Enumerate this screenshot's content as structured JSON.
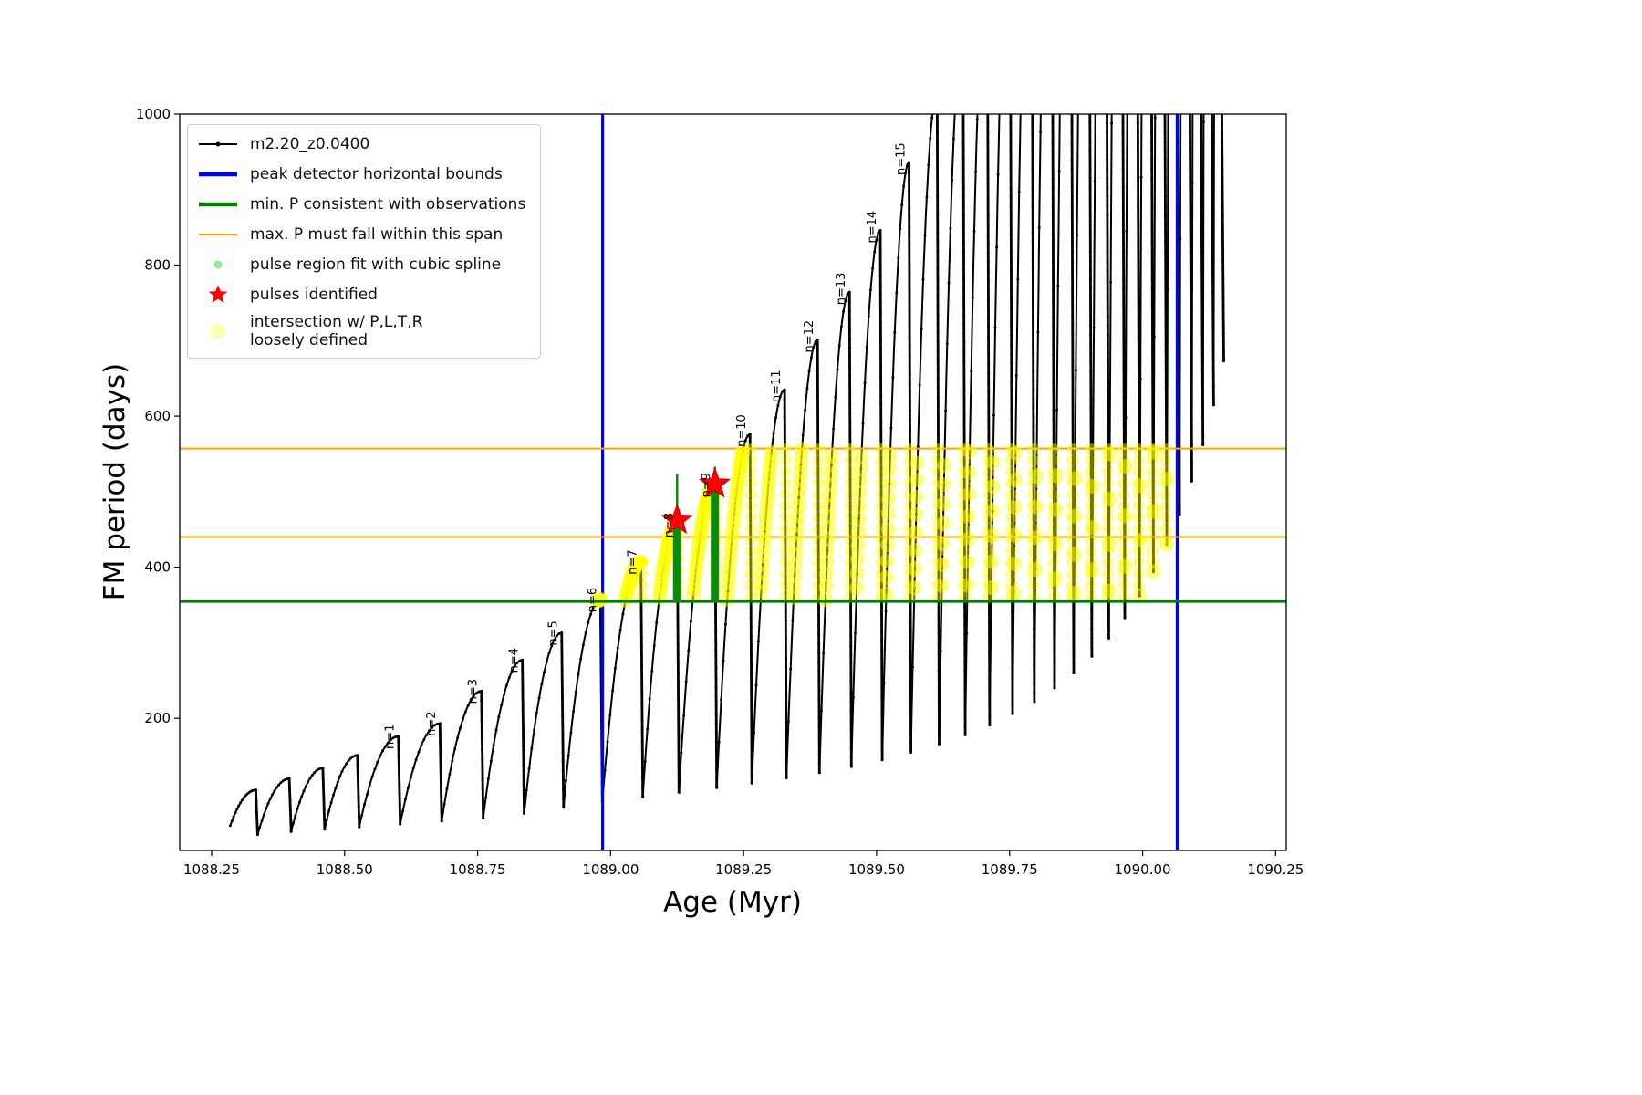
{
  "figure": {
    "background": "#ffffff"
  },
  "legend": {
    "items": [
      {
        "type": "line-dot",
        "color": "#000000",
        "label": "m2.20_z0.0400"
      },
      {
        "type": "thick-line",
        "color": "#0000ff",
        "label": "peak detector horizontal bounds"
      },
      {
        "type": "thick-line",
        "color": "#008000",
        "label": "min. P consistent with observations"
      },
      {
        "type": "line",
        "color": "#ffa500",
        "label": "max. P must fall within this span"
      },
      {
        "type": "dot",
        "color": "#90ee90",
        "label": "pulse region fit with cubic spline"
      },
      {
        "type": "star",
        "color": "#ff0000",
        "label": "pulses identified"
      },
      {
        "type": "big-dot",
        "color": "#ffff99",
        "label": "intersection w/ P,L,T,R\nloosely defined"
      }
    ]
  },
  "chart_data": {
    "type": "line",
    "series_name": "m2.20_z0.0400",
    "title": "",
    "xlabel": "Age (Myr)",
    "ylabel": "FM period (days)",
    "xlim": [
      1088.19,
      1090.27
    ],
    "ylim": [
      25,
      1000
    ],
    "xticks": [
      "1088.25",
      "1088.50",
      "1088.75",
      "1089.00",
      "1089.25",
      "1089.50",
      "1089.75",
      "1090.00",
      "1090.25"
    ],
    "yticks": [
      "200",
      "400",
      "600",
      "800",
      "1000"
    ],
    "colors": {
      "series": "#000000",
      "peak_bounds": "#0000ff",
      "min_P": "#008000",
      "max_P_span": "#ffa500",
      "pulse_region": "#0b8a0b",
      "pulses": "#ff0000",
      "intersection": "#ffff00"
    },
    "peak_detector_bounds_x": [
      1088.985,
      1090.065
    ],
    "min_P_y": 355,
    "max_P_span_y": [
      440,
      557
    ],
    "pulses_identified": [
      {
        "x": 1089.125,
        "y": 462
      },
      {
        "x": 1089.196,
        "y": 510
      }
    ],
    "pulse_regions": [
      {
        "x": 1089.125,
        "y0": 353,
        "y1": 455,
        "spike_to": 523
      },
      {
        "x": 1089.196,
        "y0": 353,
        "y1": 505,
        "spike_to": 533
      }
    ],
    "intersection_band": {
      "x0": 1088.96,
      "x1": 1090.055,
      "y0": 355,
      "y1": 557
    },
    "series_start": {
      "x": 1088.285,
      "y": 58
    },
    "cycles": [
      [
        1088.333,
        105,
        46
      ],
      [
        1088.396,
        120,
        50
      ],
      [
        1088.459,
        134,
        53
      ],
      [
        1088.524,
        151,
        56
      ],
      [
        1088.601,
        176,
        60,
        "n=1"
      ],
      [
        1088.679,
        193,
        64,
        "n=2"
      ],
      [
        1088.757,
        236,
        68,
        "n=3"
      ],
      [
        1088.834,
        277,
        74,
        "n=4"
      ],
      [
        1088.908,
        313,
        82,
        "n=5"
      ],
      [
        1088.981,
        357,
        90,
        "n=6"
      ],
      [
        1089.057,
        407,
        96,
        "n=7"
      ],
      [
        1089.125,
        456,
        102,
        "n=8"
      ],
      [
        1089.196,
        509,
        108,
        "n=9"
      ],
      [
        1089.262,
        576,
        114,
        "n=10"
      ],
      [
        1089.327,
        635,
        121,
        "n=11"
      ],
      [
        1089.389,
        701,
        128,
        "n=12"
      ],
      [
        1089.449,
        764,
        136,
        "n=13"
      ],
      [
        1089.507,
        846,
        145,
        "n=14"
      ],
      [
        1089.561,
        936,
        155,
        "n=15"
      ],
      [
        1089.614,
        1030,
        166
      ],
      [
        1089.663,
        1120,
        178
      ],
      [
        1089.709,
        1220,
        191
      ],
      [
        1089.752,
        1330,
        206
      ],
      [
        1089.793,
        1450,
        222
      ],
      [
        1089.831,
        1580,
        240
      ],
      [
        1089.867,
        1720,
        260
      ],
      [
        1089.901,
        1870,
        282
      ],
      [
        1089.933,
        2030,
        306
      ],
      [
        1089.963,
        2200,
        333
      ],
      [
        1089.991,
        2390,
        362
      ],
      [
        1090.017,
        2590,
        394
      ],
      [
        1090.042,
        2810,
        430
      ],
      [
        1090.066,
        3050,
        470
      ],
      [
        1090.089,
        3300,
        514
      ],
      [
        1090.11,
        3580,
        562
      ],
      [
        1090.13,
        3880,
        615
      ],
      [
        1090.149,
        4200,
        673
      ]
    ]
  }
}
